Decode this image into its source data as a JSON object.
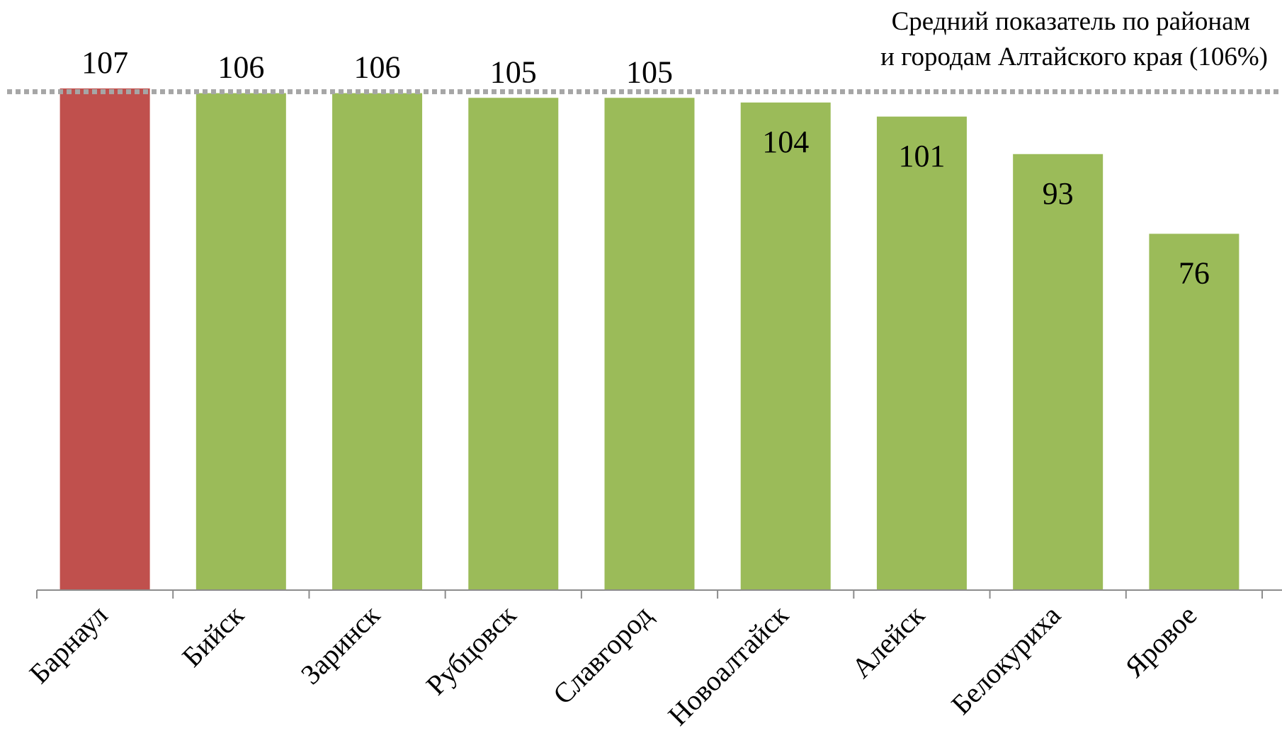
{
  "chart_data": {
    "type": "bar",
    "title": "",
    "xlabel": "",
    "ylabel": "",
    "ylim": [
      0,
      107
    ],
    "grid": false,
    "categories": [
      "Барнаул",
      "Бийск",
      "Заринск",
      "Рубцовск",
      "Славгород",
      "Новоалтайск",
      "Алейск",
      "Белокуриха",
      "Яровое"
    ],
    "values": [
      107,
      106,
      106,
      105,
      105,
      104,
      101,
      93,
      76
    ],
    "value_labels": [
      "107",
      "106",
      "106",
      "105",
      "105",
      "104",
      "101",
      "93",
      "76"
    ],
    "highlight_index": 0,
    "colors": {
      "highlight": "#c0504d",
      "default": "#9bbb59",
      "reference_line": "#a6a6a6",
      "axis": "#8c8c8c"
    },
    "reference_line": {
      "value": 106,
      "label_lines": [
        "Средний показатель по районам",
        "и городам Алтайского края (106%)"
      ]
    }
  }
}
